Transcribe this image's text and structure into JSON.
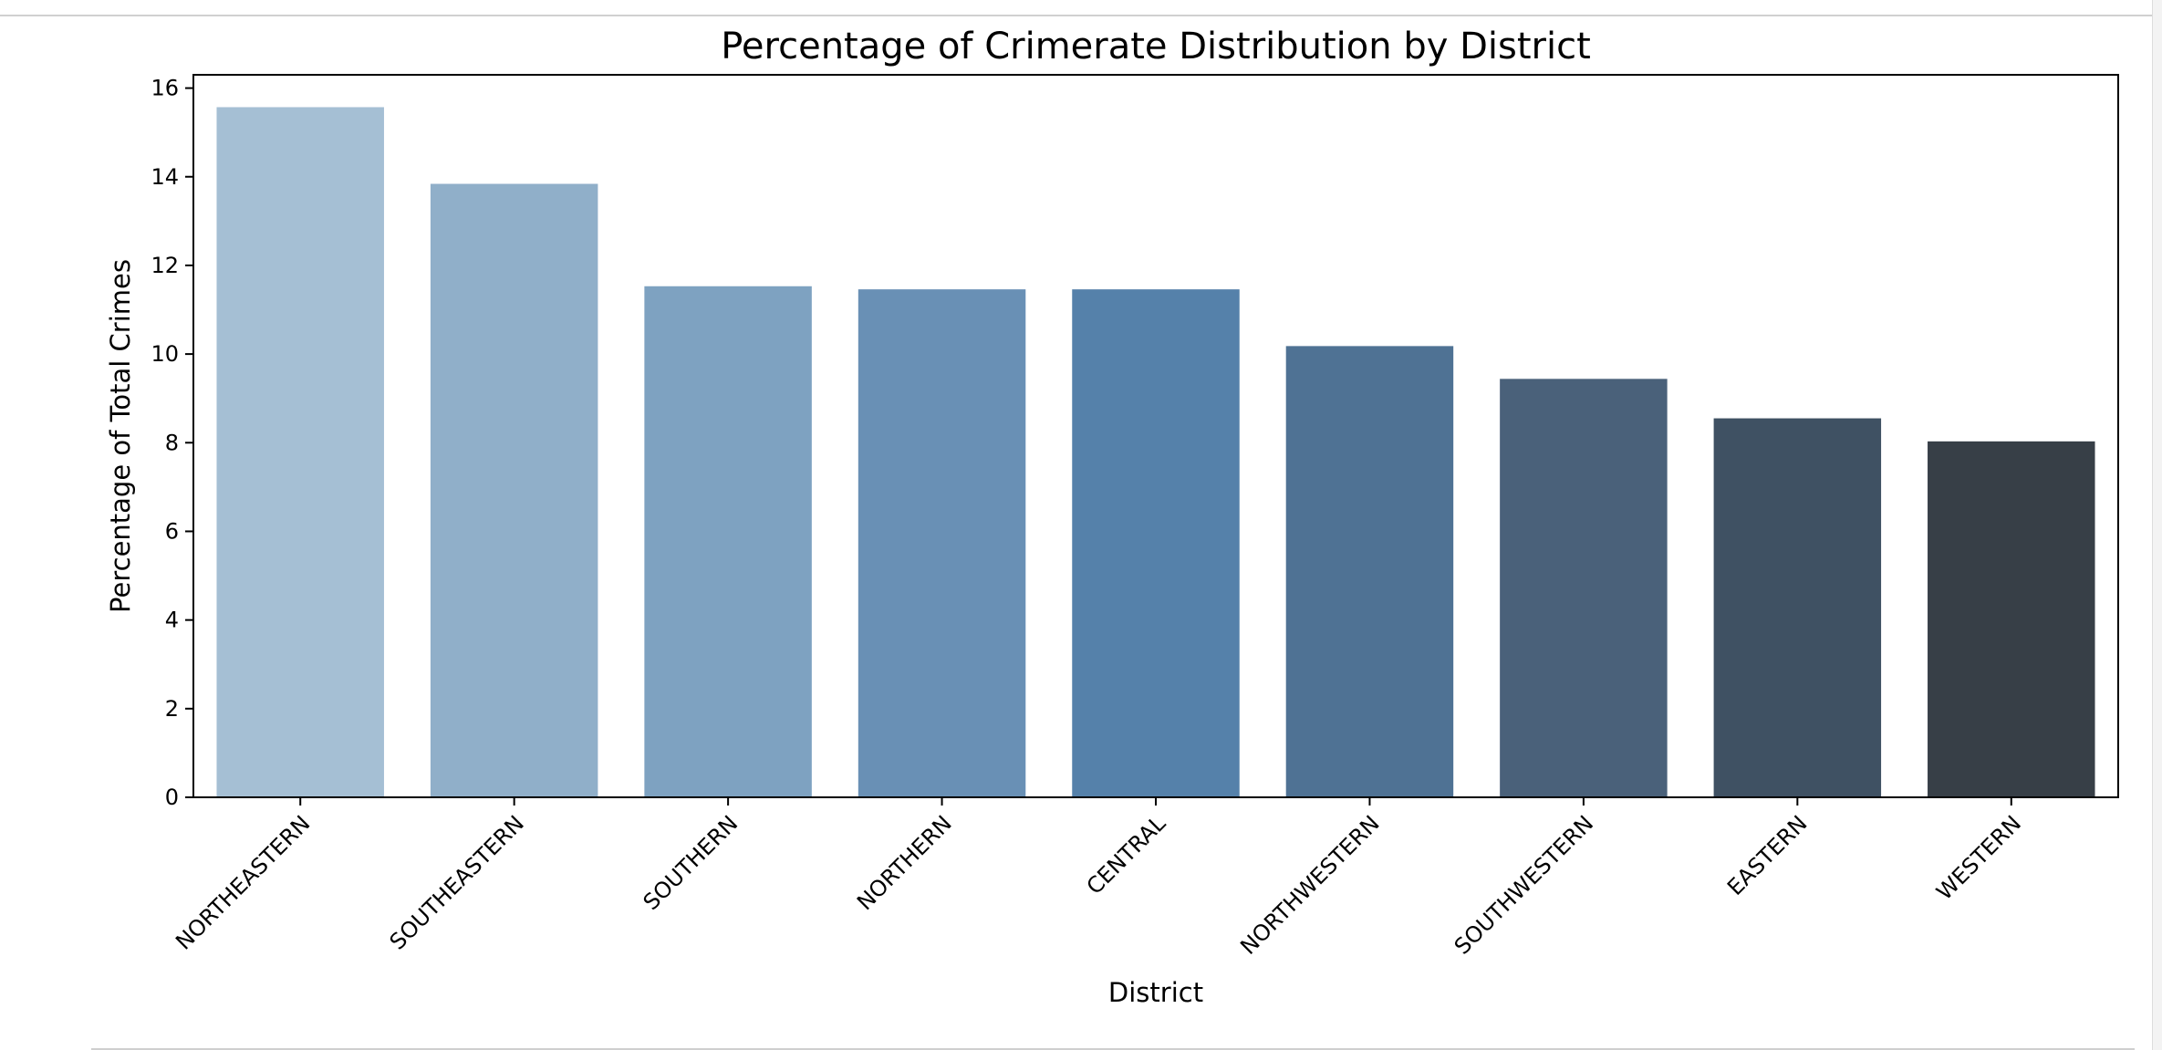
{
  "chart_data": {
    "type": "bar",
    "title": "Percentage of Crimerate Distribution by District",
    "xlabel": "District",
    "ylabel": "Percentage of Total Crimes",
    "categories": [
      "NORTHEASTERN",
      "SOUTHEASTERN",
      "SOUTHERN",
      "NORTHERN",
      "CENTRAL",
      "NORTHWESTERN",
      "SOUTHWESTERN",
      "EASTERN",
      "WESTERN"
    ],
    "values": [
      15.57,
      13.84,
      11.53,
      11.46,
      11.46,
      10.18,
      9.44,
      8.55,
      8.03
    ],
    "colors": [
      "#a5bfd4",
      "#90afc9",
      "#7ea2c1",
      "#6990b5",
      "#5581aa",
      "#4f7294",
      "#4a617a",
      "#3f5163",
      "#373f47"
    ],
    "ylim": [
      0,
      16.3
    ],
    "yticks": [
      0,
      2,
      4,
      6,
      8,
      10,
      12,
      14,
      16
    ],
    "grid": false,
    "legend": "none"
  }
}
